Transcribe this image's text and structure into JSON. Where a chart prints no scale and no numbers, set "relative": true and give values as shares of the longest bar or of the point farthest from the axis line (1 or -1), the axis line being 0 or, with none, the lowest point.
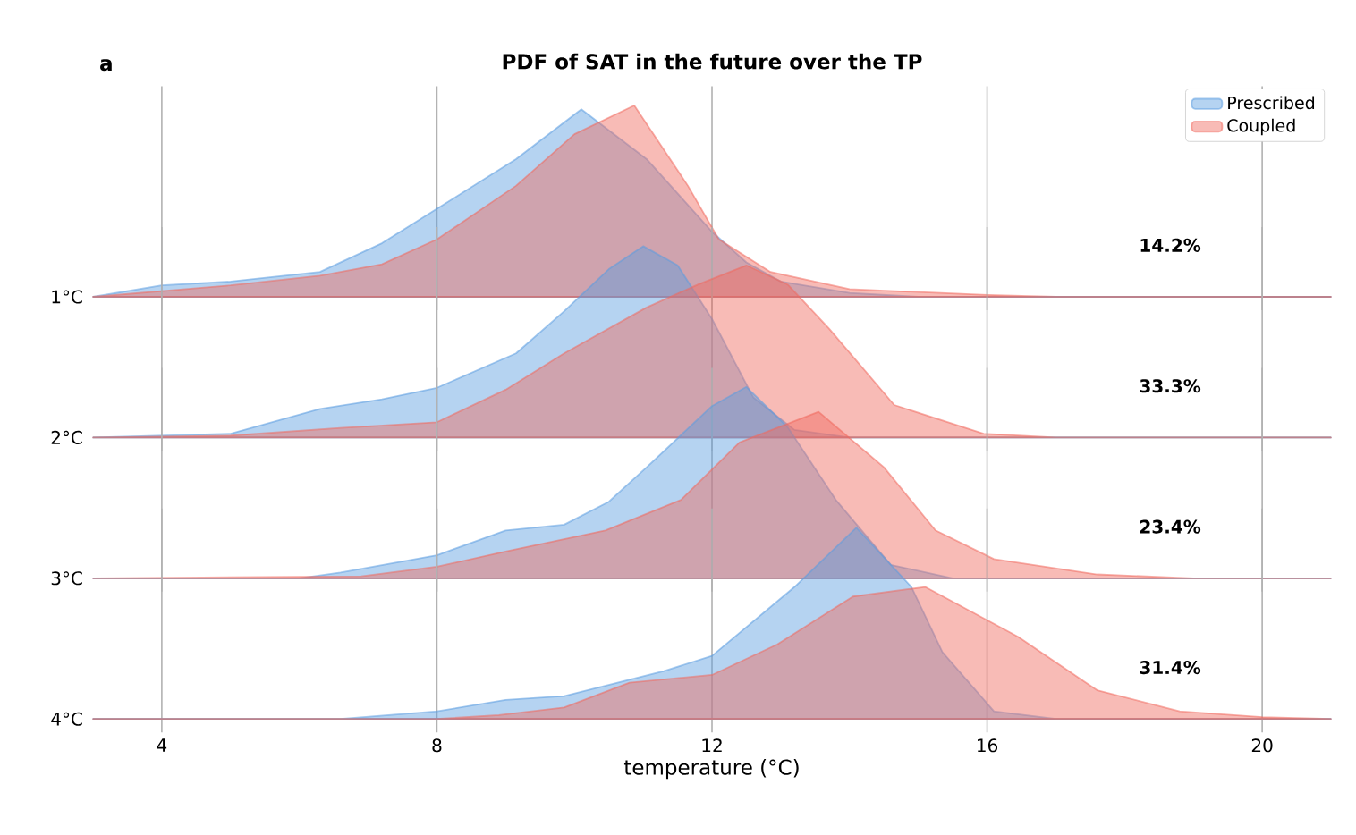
{
  "chart_data": [
    {
      "type": "area",
      "title": "PDF of SAT in the future over the TP",
      "ylabel": "1°C",
      "annotations": [
        "a",
        "14.2%"
      ],
      "relative": true,
      "xlim": [
        3,
        21
      ],
      "xticks": [
        4,
        8,
        12,
        16,
        20
      ],
      "tick_labels": false,
      "grid": "x",
      "legend": "top right",
      "series": [
        {
          "name": "Prescribed",
          "color": "#5b9de0",
          "x": [
            3,
            4,
            5,
            6.3,
            7.2,
            8,
            9.15,
            10.1,
            11.05,
            11.5,
            12,
            12.5,
            13,
            14,
            15,
            21
          ],
          "values": [
            0,
            0.06,
            0.08,
            0.13,
            0.28,
            0.46,
            0.72,
            0.98,
            0.72,
            0.54,
            0.34,
            0.18,
            0.08,
            0.02,
            0,
            0
          ]
        },
        {
          "name": "Coupled",
          "color": "#f0695e",
          "x": [
            3,
            4,
            5,
            6.3,
            7.2,
            8,
            9.15,
            10,
            10.87,
            11.65,
            12.1,
            12.85,
            14,
            16,
            17,
            21
          ],
          "values": [
            0,
            0.03,
            0.06,
            0.11,
            0.17,
            0.3,
            0.58,
            0.85,
            1.0,
            0.58,
            0.3,
            0.13,
            0.04,
            0.01,
            0,
            0
          ]
        }
      ]
    },
    {
      "type": "area",
      "ylabel": "2°C",
      "annotations": [
        "33.3%"
      ],
      "relative": true,
      "xlim": [
        3,
        21
      ],
      "xticks": [
        4,
        8,
        12,
        16,
        20
      ],
      "tick_labels": false,
      "grid": "x",
      "series": [
        {
          "color": "#5b9de0",
          "x": [
            3,
            5,
            6.3,
            7.2,
            8,
            9.15,
            9.85,
            10.5,
            11,
            11.5,
            12,
            12.6,
            13.2,
            14,
            21
          ],
          "values": [
            0,
            0.02,
            0.15,
            0.2,
            0.26,
            0.44,
            0.66,
            0.88,
            1.0,
            0.9,
            0.62,
            0.21,
            0.04,
            0,
            0
          ]
        },
        {
          "color": "#f0695e",
          "x": [
            3,
            5,
            6.6,
            8,
            9,
            9.85,
            11.05,
            11.8,
            12.5,
            13.1,
            13.7,
            14.65,
            15.95,
            17,
            21
          ],
          "values": [
            0,
            0.01,
            0.05,
            0.08,
            0.25,
            0.44,
            0.68,
            0.8,
            0.9,
            0.8,
            0.57,
            0.17,
            0.02,
            0,
            0
          ]
        }
      ]
    },
    {
      "type": "area",
      "ylabel": "3°C",
      "annotations": [
        "23.4%"
      ],
      "relative": true,
      "xlim": [
        3,
        21
      ],
      "xticks": [
        4,
        8,
        12,
        16,
        20
      ],
      "tick_labels": false,
      "grid": "x",
      "series": [
        {
          "color": "#5b9de0",
          "x": [
            3,
            6,
            6.6,
            8,
            9,
            9.85,
            10.5,
            11.05,
            12,
            12.5,
            13.1,
            13.8,
            14.6,
            15.5,
            21
          ],
          "values": [
            0,
            0,
            0.03,
            0.12,
            0.25,
            0.28,
            0.4,
            0.58,
            0.9,
            1.0,
            0.79,
            0.41,
            0.07,
            0,
            0
          ]
        },
        {
          "color": "#f0695e",
          "x": [
            3,
            6.9,
            8,
            9,
            10.45,
            11.55,
            12.4,
            13.55,
            14.5,
            15.25,
            16.1,
            17.6,
            19,
            21
          ],
          "values": [
            0,
            0.01,
            0.06,
            0.14,
            0.25,
            0.41,
            0.71,
            0.87,
            0.58,
            0.25,
            0.1,
            0.02,
            0,
            0
          ]
        }
      ]
    },
    {
      "type": "area",
      "ylabel": "4°C",
      "xlabel": "temperature (°C)",
      "annotations": [
        "31.4%"
      ],
      "relative": true,
      "xlim": [
        3,
        21
      ],
      "xticks": [
        4,
        8,
        12,
        16,
        20
      ],
      "tick_labels": "x",
      "grid": "x",
      "series": [
        {
          "color": "#5b9de0",
          "x": [
            3,
            6.6,
            8,
            9,
            9.85,
            11.3,
            12,
            13.2,
            14.1,
            14.9,
            15.35,
            16.1,
            17,
            21
          ],
          "values": [
            0,
            0,
            0.04,
            0.1,
            0.12,
            0.25,
            0.33,
            0.69,
            1.0,
            0.69,
            0.35,
            0.04,
            0,
            0
          ]
        },
        {
          "color": "#f0695e",
          "x": [
            3,
            8,
            8.9,
            9.85,
            10.8,
            12,
            12.95,
            14.05,
            15.1,
            16.45,
            17.6,
            18.8,
            20,
            21
          ],
          "values": [
            0,
            0,
            0.02,
            0.06,
            0.19,
            0.23,
            0.39,
            0.64,
            0.69,
            0.43,
            0.15,
            0.04,
            0.01,
            0
          ]
        }
      ]
    }
  ]
}
